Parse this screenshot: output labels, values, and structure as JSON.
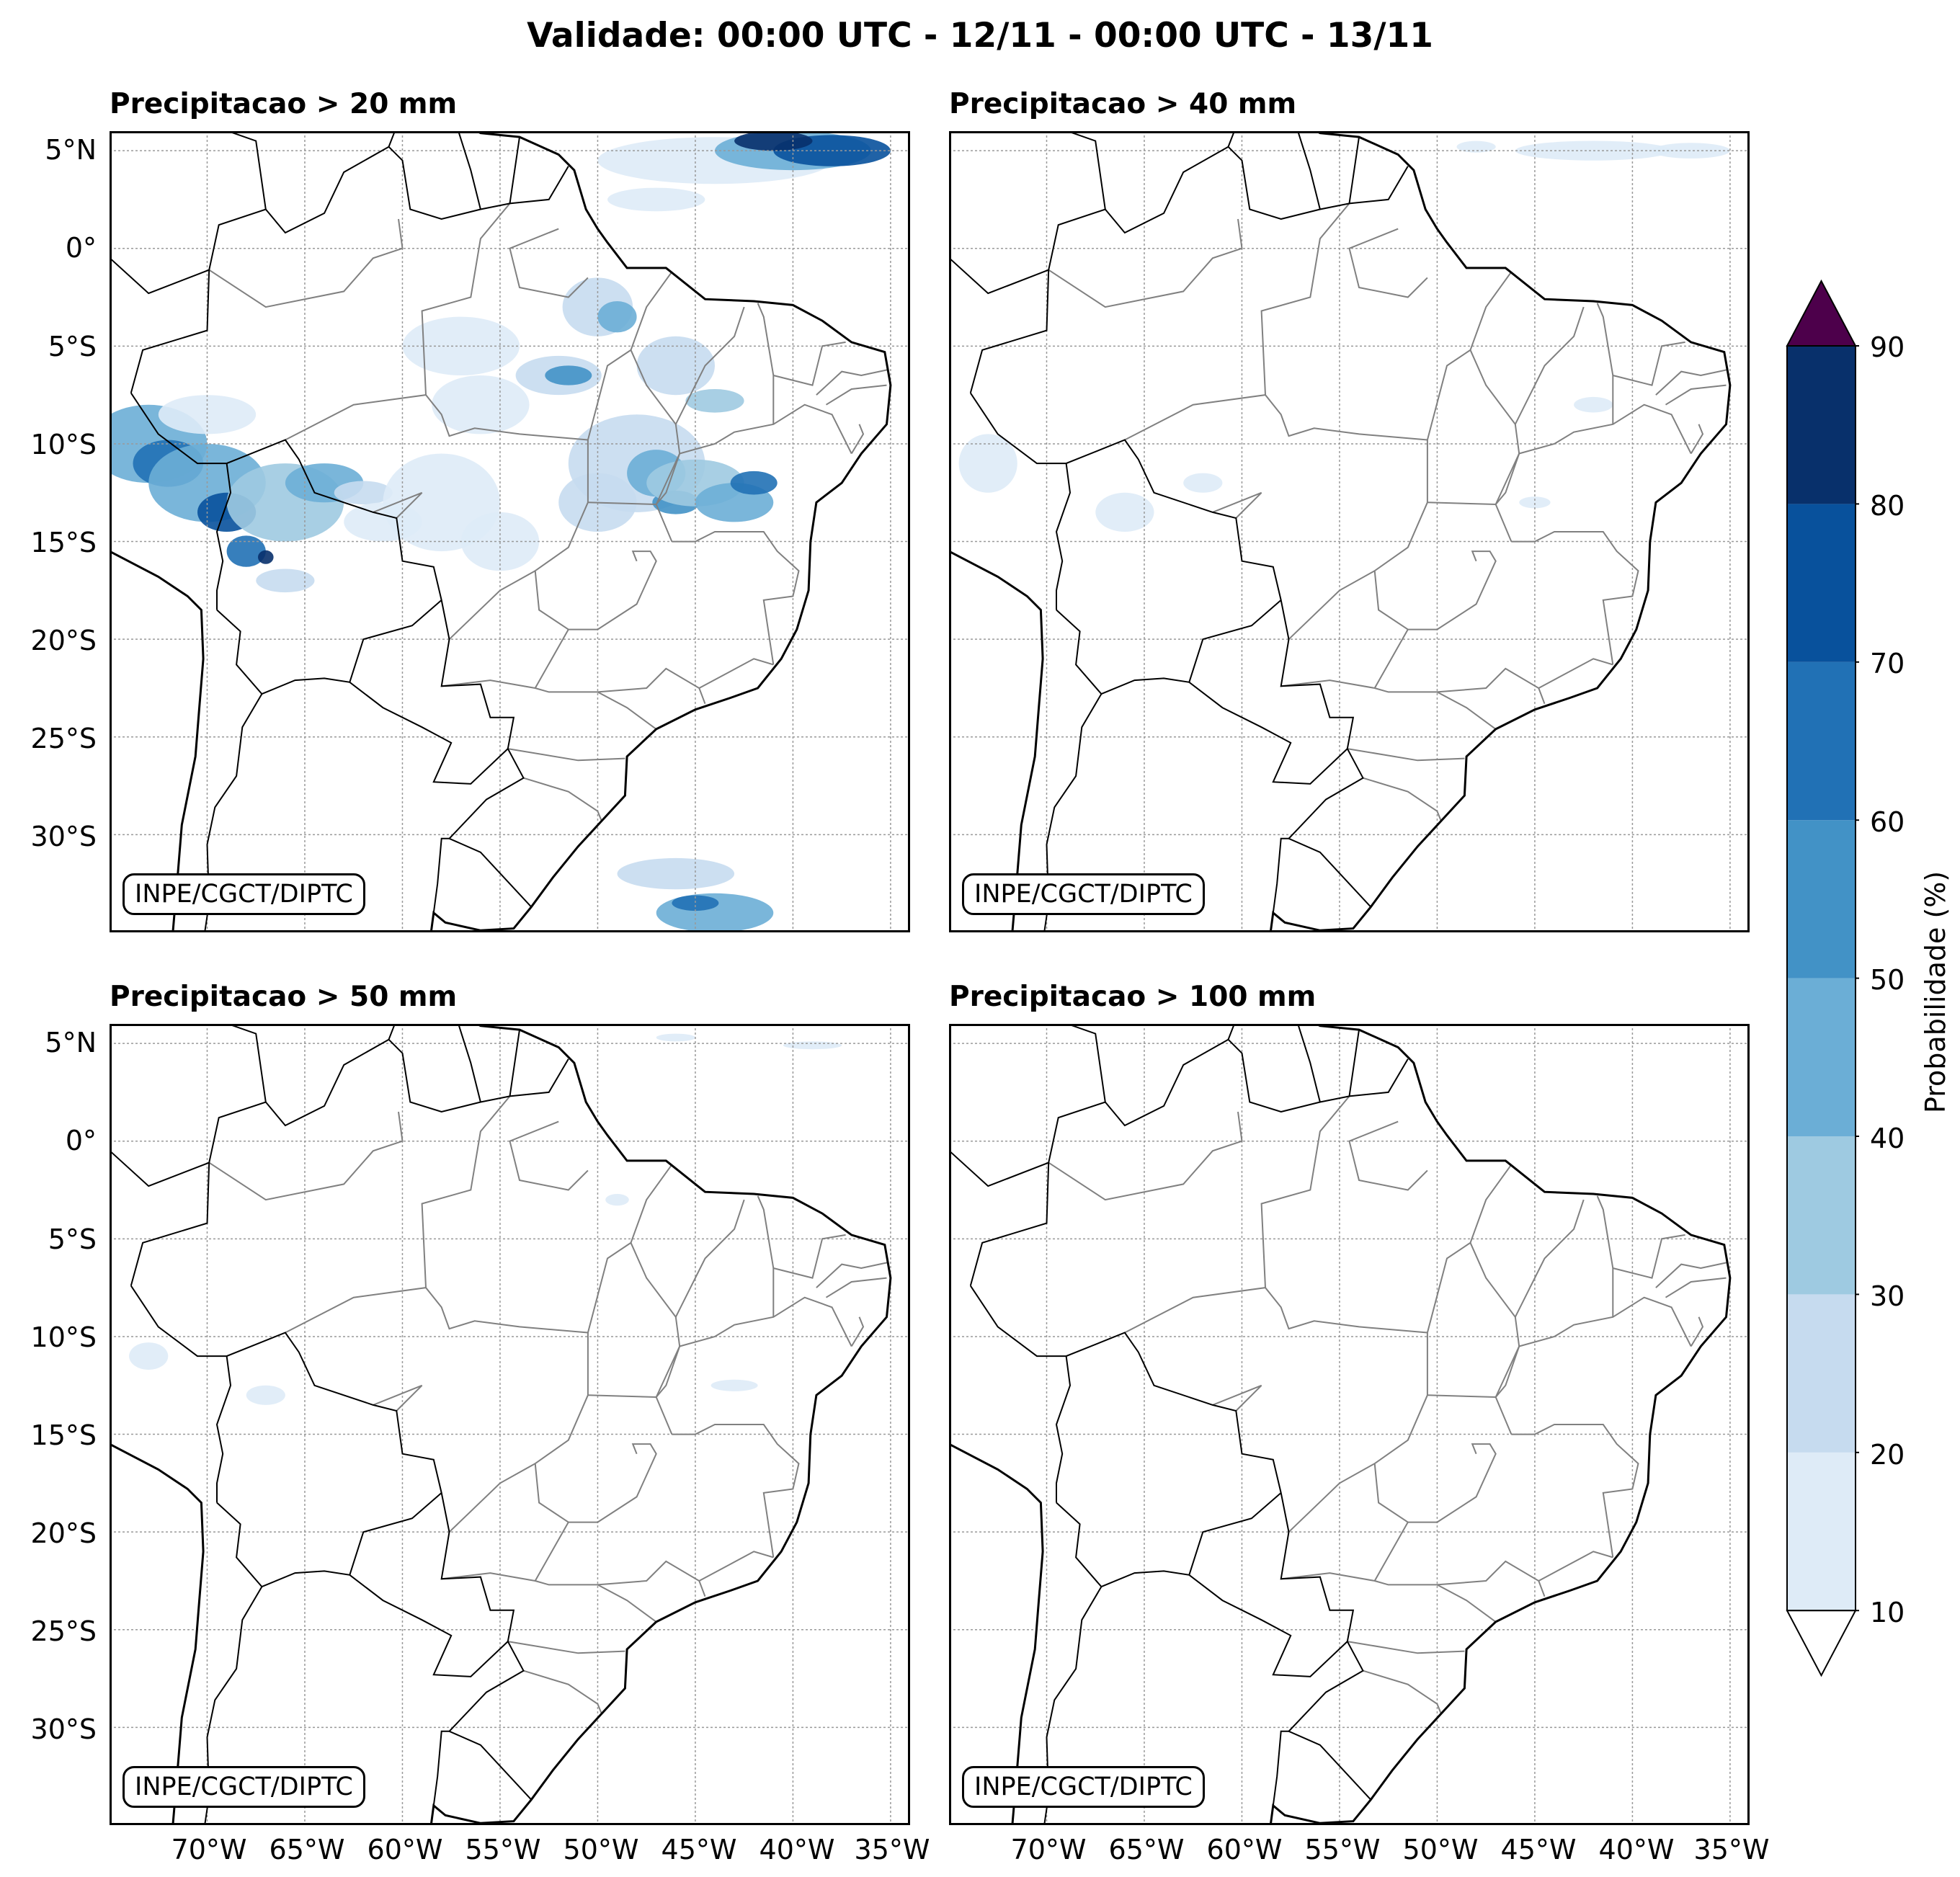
{
  "title": "Validade: 00:00 UTC - 12/11 - 00:00 UTC - 13/11",
  "credit": "INPE/CGCT/DIPTC",
  "lat_ticks": [
    "5°N",
    "0°",
    "5°S",
    "10°S",
    "15°S",
    "20°S",
    "25°S",
    "30°S"
  ],
  "lon_ticks": [
    "70°W",
    "65°W",
    "60°W",
    "55°W",
    "50°W",
    "45°W",
    "40°W",
    "35°W"
  ],
  "panels": [
    {
      "title": "Precipitacao > 20 mm"
    },
    {
      "title": "Precipitacao > 40 mm"
    },
    {
      "title": "Precipitacao > 50 mm"
    },
    {
      "title": "Precipitacao > 100 mm"
    }
  ],
  "colorbar": {
    "label": "Probabilidade (%)",
    "ticks": [
      "10",
      "20",
      "30",
      "40",
      "50",
      "60",
      "70",
      "80",
      "90"
    ],
    "colors": [
      "#deebf7",
      "#c6dbef",
      "#9ecae1",
      "#6baed6",
      "#4292c6",
      "#2171b5",
      "#08519c",
      "#08306b"
    ],
    "over_color": "#4d004b",
    "under_color": "#ffffff"
  },
  "colors": {
    "coast": "#000000",
    "states": "#808080",
    "grid": "#999999"
  }
}
